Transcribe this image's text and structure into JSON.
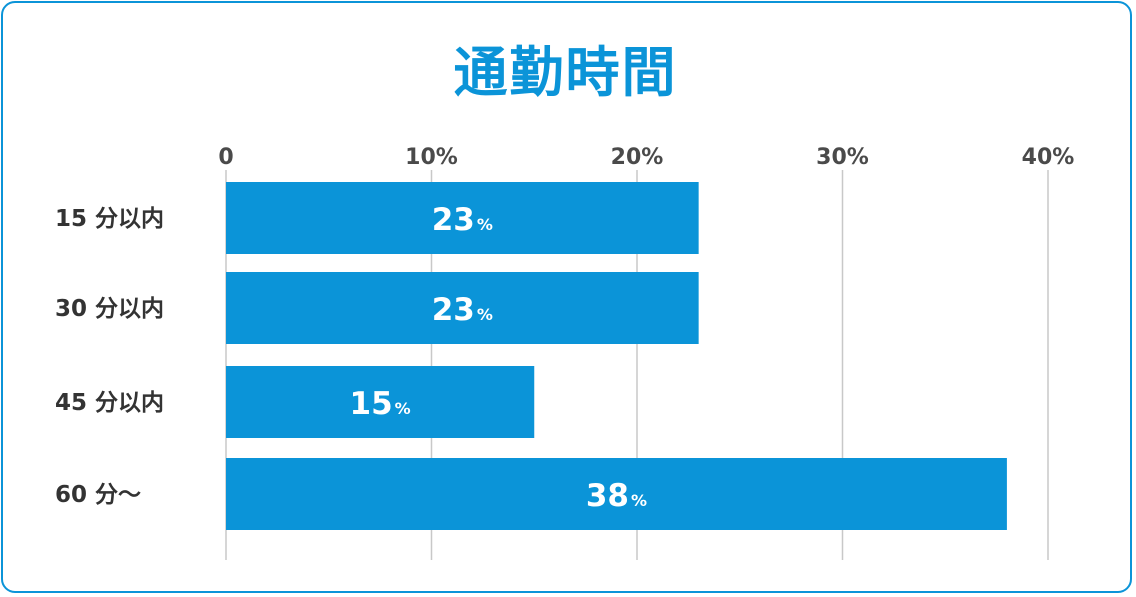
{
  "chart_data": {
    "type": "bar",
    "orientation": "horizontal",
    "title": "通勤時間",
    "categories": [
      "15 分以内",
      "30 分以内",
      "45 分以内",
      "60 分～"
    ],
    "values": [
      23,
      23,
      15,
      38
    ],
    "value_labels": [
      "23",
      "23",
      "15",
      "38"
    ],
    "value_unit": "%",
    "xlim": [
      0,
      40
    ],
    "x_ticks": [
      "0",
      "10%",
      "20%",
      "30%",
      "40%"
    ],
    "x_tick_values": [
      0,
      10,
      20,
      30,
      40
    ],
    "xlabel": "",
    "ylabel": "",
    "grid": true,
    "colors": {
      "bar": "#0b94d8",
      "title": "#0b94d8",
      "frame": "#0b94d8",
      "grid": "#c8c8c8",
      "bar_text": "#ffffff"
    }
  }
}
